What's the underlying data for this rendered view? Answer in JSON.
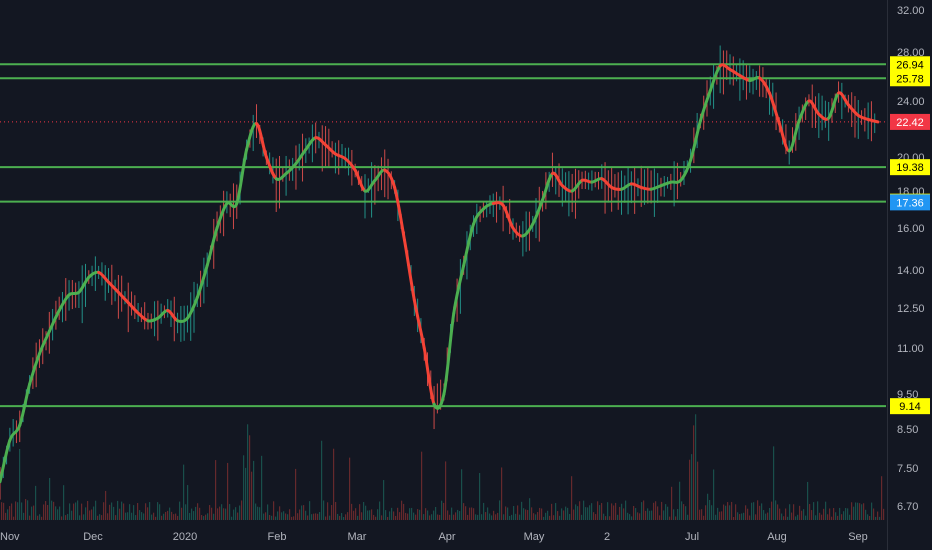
{
  "chart_data": {
    "type": "line",
    "y_scale": "log",
    "ylim": [
      6.5,
      33.5
    ],
    "grid": false,
    "y_ticks": [
      32.0,
      28.0,
      24.0,
      20.0,
      18.0,
      16.0,
      14.0,
      12.5,
      11.0,
      9.5,
      8.5,
      7.5,
      6.7
    ],
    "y_tick_labels": [
      "32.00",
      "28.00",
      "24.00",
      "20.00",
      "18.00",
      "16.00",
      "14.00",
      "12.50",
      "11.00",
      "9.50",
      "8.50",
      "7.50",
      "6.70"
    ],
    "x_tick_labels": [
      "Nov",
      "Dec",
      "2020",
      "Feb",
      "Mar",
      "Apr",
      "May",
      "2",
      "Jul",
      "Aug",
      "Sep"
    ],
    "horizontal_levels": [
      {
        "label": "26.94",
        "value": 26.94
      },
      {
        "label": "25.78",
        "value": 25.78
      },
      {
        "label": "19.38",
        "value": 19.38
      },
      {
        "label": "17.40",
        "value": 17.4
      },
      {
        "label": "9.14",
        "value": 9.14
      }
    ],
    "price_tags": [
      {
        "label": "22.42",
        "value": 22.42,
        "color": "#f23645",
        "text_color": "#ffffff"
      },
      {
        "label": "17.36",
        "value": 17.36,
        "color": "#2196f3",
        "text_color": "#ffffff"
      }
    ],
    "last_price": 22.42,
    "series": [
      {
        "type": "smoothed-moving-average",
        "color_up": "#4caf50",
        "color_down": "#f44336",
        "values": [
          7.2,
          8.2,
          8.6,
          9.8,
          10.8,
          11.6,
          12.4,
          13.0,
          13.1,
          13.7,
          13.9,
          13.5,
          13.1,
          12.7,
          12.3,
          12.0,
          12.1,
          12.4,
          12.0,
          12.1,
          12.9,
          14.2,
          16.0,
          17.3,
          17.3,
          20.5,
          22.3,
          20.0,
          18.7,
          19.0,
          19.6,
          20.5,
          21.3,
          20.8,
          20.2,
          19.9,
          19.2,
          18.0,
          18.6,
          19.2,
          18.2,
          15.4,
          12.8,
          11.0,
          9.2,
          9.5,
          12.3,
          14.2,
          16.2,
          17.0,
          17.3,
          17.2,
          16.0,
          15.6,
          16.2,
          17.5,
          19.0,
          18.3,
          18.0,
          18.6,
          18.5,
          18.7,
          18.2,
          18.1,
          18.4,
          18.2,
          18.1,
          18.3,
          18.5,
          18.6,
          19.8,
          22.5,
          24.8,
          26.8,
          26.5,
          26.0,
          25.6,
          25.8,
          24.6,
          22.3,
          20.4,
          22.5,
          24.0,
          23.0,
          22.7,
          24.6,
          23.7,
          22.9,
          22.6,
          22.42
        ]
      }
    ]
  }
}
